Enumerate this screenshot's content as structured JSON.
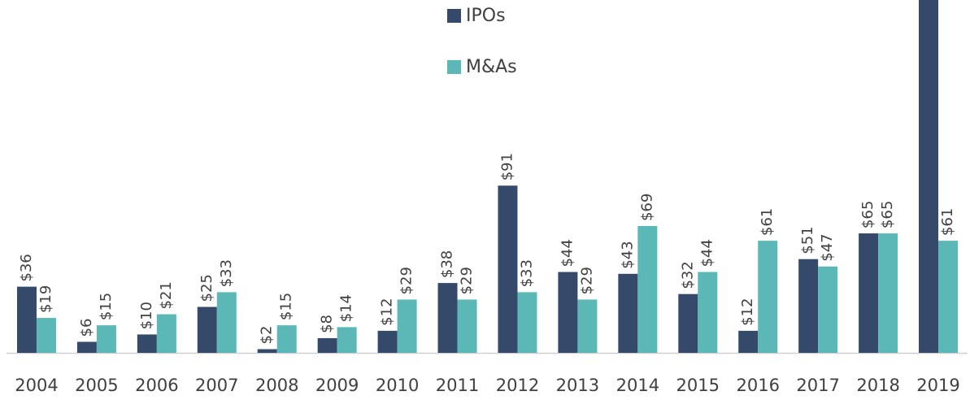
{
  "chart_data": {
    "type": "bar",
    "categories": [
      "2004",
      "2005",
      "2006",
      "2007",
      "2008",
      "2009",
      "2010",
      "2011",
      "2012",
      "2013",
      "2014",
      "2015",
      "2016",
      "2017",
      "2018",
      "2019"
    ],
    "series": [
      {
        "name": "IPOs",
        "color": "#354a6b",
        "values": [
          36,
          6,
          10,
          25,
          2,
          8,
          12,
          38,
          91,
          44,
          43,
          32,
          12,
          51,
          65,
          200
        ],
        "value_labels": [
          "$36",
          "$6",
          "$10",
          "$25",
          "$2",
          "$8",
          "$12",
          "$38",
          "$91",
          "$44",
          "$43",
          "$32",
          "$12",
          "$51",
          "$65",
          null
        ]
      },
      {
        "name": "M&As",
        "color": "#5bb8b6",
        "values": [
          19,
          15,
          21,
          33,
          15,
          14,
          29,
          29,
          33,
          29,
          69,
          44,
          61,
          47,
          65,
          61
        ],
        "value_labels": [
          "$19",
          "$15",
          "$21",
          "$33",
          "$15",
          "$14",
          "$29",
          "$29",
          "$33",
          "$29",
          "$69",
          "$44",
          "$61",
          "$47",
          "$65",
          "$61"
        ]
      }
    ],
    "ylim": [
      0,
      192
    ],
    "legend": "top"
  }
}
